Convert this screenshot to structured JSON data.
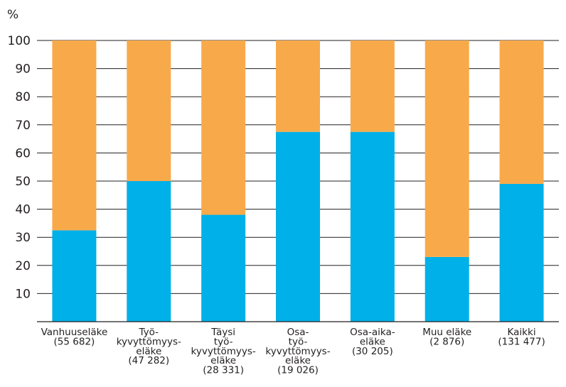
{
  "chart_data": {
    "type": "bar",
    "stacked": true,
    "ylabel": "%",
    "ylim": [
      0,
      100
    ],
    "yticks": [
      10,
      20,
      30,
      40,
      50,
      60,
      70,
      80,
      90,
      100
    ],
    "grid": true,
    "categories": [
      [
        "Vanhuuseläke",
        "(55 682)"
      ],
      [
        "Työ-",
        "kyvyttömyys-",
        "eläke",
        "(47 282)"
      ],
      [
        "Täysi",
        "työ-",
        "kyvyttömyys-",
        "eläke",
        "(28 331)"
      ],
      [
        "Osa-",
        "työ-",
        "kyvyttömyys-",
        "eläke",
        "(19 026)"
      ],
      [
        "Osa-aika-",
        "eläke",
        "(30 205)"
      ],
      [
        "Muu eläke",
        "(2 876)"
      ],
      [
        "Kaikki",
        "(131 477)"
      ]
    ],
    "series": [
      {
        "color": "#00b0e8",
        "values": [
          32.5,
          50,
          38,
          67.5,
          67.5,
          23,
          49
        ]
      },
      {
        "color": "#f8aa4a",
        "values": [
          67.5,
          50,
          62,
          32.5,
          32.5,
          77,
          51
        ]
      }
    ]
  }
}
